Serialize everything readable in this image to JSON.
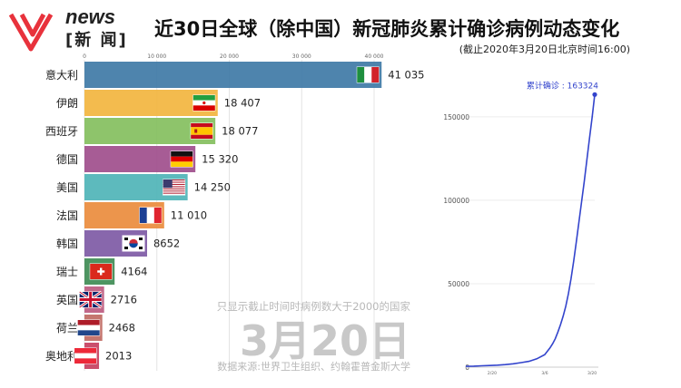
{
  "header": {
    "logo_text": "news",
    "logo_cn": "[新 闻]",
    "title": "近30日全球（除中国）新冠肺炎累计确诊病例动态变化",
    "subtitle": "(截止2020年3月20日北京时间16:00)"
  },
  "overlay": {
    "note": "只显示截止时间时病例数大于2000的国家",
    "date": "3月20日",
    "source": "数据来源:世界卫生组织、约翰霍普金斯大学"
  },
  "colors": {
    "logo": "#e8323c",
    "line": "#3344cc"
  },
  "chart_data": [
    {
      "type": "bar",
      "orientation": "horizontal",
      "categories": [
        "意大利",
        "伊朗",
        "西班牙",
        "德国",
        "美国",
        "法国",
        "韩国",
        "瑞士",
        "英国",
        "荷兰",
        "奥地利"
      ],
      "values": [
        41035,
        18407,
        18077,
        15320,
        14250,
        11010,
        8652,
        4164,
        2716,
        2468,
        2013
      ],
      "value_labels": [
        "41 035",
        "18 407",
        "18 077",
        "15 320",
        "14 250",
        "11 010",
        "8652",
        "4164",
        "2716",
        "2468",
        "2013"
      ],
      "colors": [
        "#3f79a6",
        "#f2b53f",
        "#84bf5e",
        "#a04e8c",
        "#4fb4b7",
        "#ea8c3d",
        "#7e5aa5",
        "#3f8c55",
        "#bd5b80",
        "#c06a63",
        "#c64060"
      ],
      "flags": [
        "italy-flag",
        "iran-flag",
        "spain-flag",
        "germany-flag",
        "usa-flag",
        "france-flag",
        "korea-flag",
        "switzerland-flag",
        "uk-flag",
        "netherlands-flag",
        "austria-flag"
      ],
      "xlim": [
        0,
        40000
      ],
      "xticks": [
        0,
        10000,
        20000,
        30000,
        40000
      ],
      "xtick_labels": [
        "0",
        "10 000",
        "20 000",
        "30 000",
        "40 000"
      ],
      "grid": true
    },
    {
      "type": "line",
      "series": [
        {
          "x": [
            0,
            3,
            6,
            9,
            12,
            15,
            18,
            21,
            24,
            27,
            30,
            31,
            32,
            33,
            34,
            35,
            36,
            37,
            38,
            39,
            40,
            41,
            42,
            43,
            44,
            45,
            46,
            47,
            48,
            49
          ],
          "values": [
            500,
            600,
            800,
            1000,
            1200,
            1500,
            2000,
            2700,
            3500,
            5000,
            7500,
            9500,
            11500,
            14000,
            17000,
            21000,
            25500,
            30500,
            36500,
            44000,
            53000,
            63500,
            75000,
            87000,
            99000,
            111000,
            124000,
            137000,
            149500,
            163324
          ]
        }
      ],
      "annotation": "累计确诊 : 163324",
      "ylim": [
        0,
        170000
      ],
      "yticks": [
        0,
        50000,
        100000,
        150000
      ],
      "ytick_labels": [
        "0",
        "50000",
        "100000",
        "150000"
      ],
      "xticks": [
        10,
        30,
        48
      ],
      "xtick_labels": [
        "2/20",
        "3/6",
        "3/20"
      ]
    }
  ]
}
